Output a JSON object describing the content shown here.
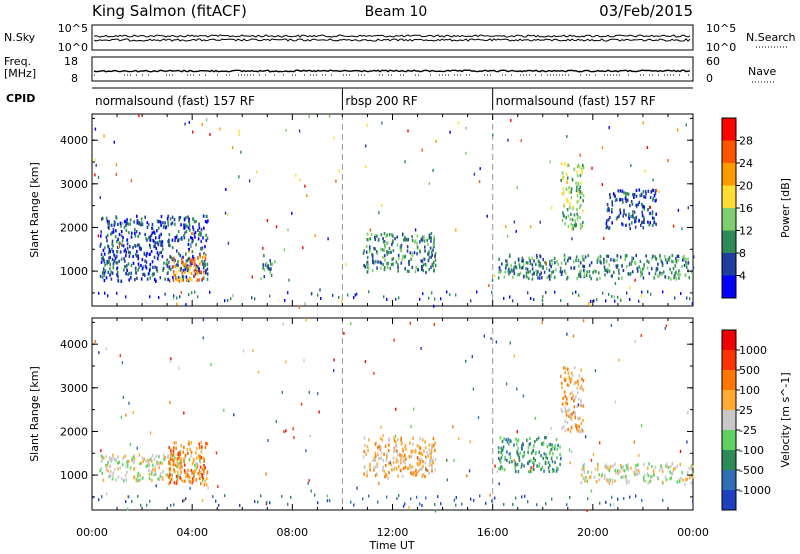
{
  "header": {
    "station": "King Salmon (fitACF)",
    "beam": "Beam 10",
    "date": "03/Feb/2015"
  },
  "strips": {
    "nsky_label": "N.Sky",
    "nsky_ticks": [
      "10^5",
      "10^0"
    ],
    "nsearch_label": "N.Search",
    "nsearch_ticks": [
      "10^5",
      "10^0"
    ],
    "freq_label_1": "Freq.",
    "freq_label_2": "[MHz]",
    "freq_ticks": [
      "18",
      "8"
    ],
    "nave_label": "Nave",
    "nave_ticks": [
      "60",
      "0"
    ],
    "cpid_label": "CPID",
    "cpid_segments": [
      {
        "label": "normalsound (fast) 157 RF",
        "start": 0,
        "end": 10
      },
      {
        "label": "rbsp 200 RF",
        "start": 10,
        "end": 16
      },
      {
        "label": "normalsound (fast) 157 RF",
        "start": 16,
        "end": 24
      }
    ]
  },
  "x_axis": {
    "label": "Time UT",
    "ticks": [
      "00:00",
      "04:00",
      "08:00",
      "12:00",
      "16:00",
      "20:00",
      "00:00"
    ]
  },
  "chart_data": [
    {
      "type": "heatmap",
      "panel": "power",
      "xlabel": "Time UT",
      "ylabel": "Slant Range [km]",
      "ylim": [
        200,
        4600
      ],
      "yticks": [
        "1000",
        "2000",
        "3000",
        "4000"
      ],
      "xlim": [
        0,
        24
      ],
      "colorbar": {
        "label": "Power [dB]",
        "ticks": [
          "28",
          "24",
          "20",
          "16",
          "12",
          "8",
          "4"
        ],
        "colors": [
          "#0000ff",
          "#1e3fa0",
          "#2e8b57",
          "#7fcf6e",
          "#ffdd33",
          "#ff9900",
          "#ff5500",
          "#ff0000"
        ]
      },
      "regions": [
        {
          "t": [
            0.3,
            4.6
          ],
          "r": [
            800,
            2300
          ],
          "level": 1
        },
        {
          "t": [
            3.2,
            4.5
          ],
          "r": [
            800,
            1400
          ],
          "level": 5
        },
        {
          "t": [
            6.8,
            7.3
          ],
          "r": [
            900,
            1400
          ],
          "level": 2
        },
        {
          "t": [
            10.8,
            13.7
          ],
          "r": [
            1000,
            1900
          ],
          "level": 2
        },
        {
          "t": [
            16.2,
            24
          ],
          "r": [
            850,
            1400
          ],
          "level": 2
        },
        {
          "t": [
            18.7,
            19.6
          ],
          "r": [
            2000,
            3500
          ],
          "level": 3
        },
        {
          "t": [
            20.5,
            22.5
          ],
          "r": [
            2000,
            2900
          ],
          "level": 1
        }
      ]
    },
    {
      "type": "heatmap",
      "panel": "velocity",
      "xlabel": "Time UT",
      "ylabel": "Slant Range [km]",
      "ylim": [
        200,
        4600
      ],
      "yticks": [
        "1000",
        "2000",
        "3000",
        "4000"
      ],
      "xlim": [
        0,
        24
      ],
      "colorbar": {
        "label": "Velocity [m s^-1]",
        "ticks": [
          "1000",
          "500",
          "100",
          "25",
          "-25",
          "-100",
          "-500",
          "-1000"
        ],
        "colors": [
          "#1e3fbf",
          "#2f6fb5",
          "#2e8b57",
          "#5fd35f",
          "#c8c8c8",
          "#ffaa33",
          "#ff7700",
          "#ff3300",
          "#ee0000"
        ]
      },
      "regions": [
        {
          "t": [
            0.3,
            4.6
          ],
          "r": [
            900,
            1500
          ],
          "level": 4
        },
        {
          "t": [
            3.0,
            4.6
          ],
          "r": [
            800,
            1800
          ],
          "level": 6
        },
        {
          "t": [
            10.8,
            13.7
          ],
          "r": [
            1000,
            1900
          ],
          "level": 5
        },
        {
          "t": [
            16.2,
            18.7
          ],
          "r": [
            1100,
            1900
          ],
          "level": 2
        },
        {
          "t": [
            19.5,
            24
          ],
          "r": [
            850,
            1300
          ],
          "level": 4
        },
        {
          "t": [
            18.7,
            19.6
          ],
          "r": [
            2000,
            3500
          ],
          "level": 5
        }
      ]
    }
  ]
}
